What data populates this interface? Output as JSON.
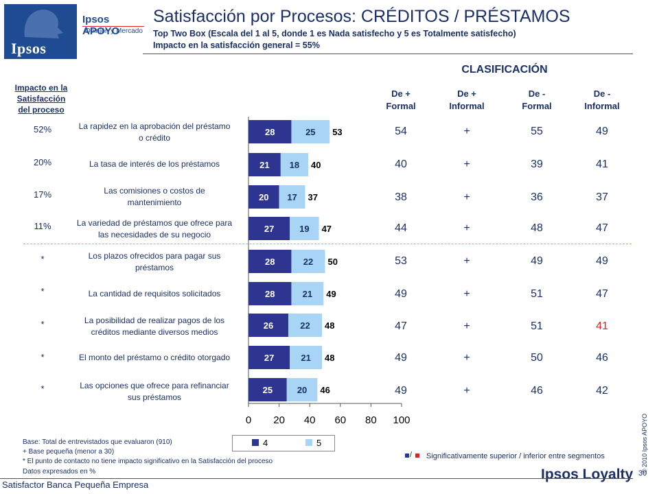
{
  "logo": {
    "brand": "Ipsos APOYO",
    "tagline": "Opinión y Mercado",
    "word": "Ipsos"
  },
  "header": {
    "title": "Satisfacción por Procesos: CRÉDITOS / PRÉSTAMOS",
    "subtitle": "Top Two Box (Escala del 1 al 5, donde 1 es Nada satisfecho y 5 es Totalmente satisfecho)",
    "impact_general": "Impacto en la satisfacción general = 55%"
  },
  "impact_header": [
    "Impacto en la",
    "Satisfacción",
    "del proceso"
  ],
  "classification": {
    "title": "CLASIFICACIÓN",
    "columns": [
      [
        "De +",
        "Formal"
      ],
      [
        "De +",
        "Informal"
      ],
      [
        "De -",
        "Formal"
      ],
      [
        "De  -",
        "Informal"
      ]
    ]
  },
  "rows": [
    {
      "impact": "52%",
      "label": [
        "La rapidez en la aprobación del préstamo",
        "o crédito"
      ],
      "class": [
        "54",
        "+",
        "55",
        "49"
      ],
      "red": [
        false,
        false,
        false,
        false
      ]
    },
    {
      "impact": "20%",
      "label": [
        "La tasa de interés de los préstamos"
      ],
      "class": [
        "40",
        "+",
        "39",
        "41"
      ],
      "red": [
        false,
        false,
        false,
        false
      ]
    },
    {
      "impact": "17%",
      "label": [
        "Las comisiones o costos de",
        "mantenimiento"
      ],
      "class": [
        "38",
        "+",
        "36",
        "37"
      ],
      "red": [
        false,
        false,
        false,
        false
      ]
    },
    {
      "impact": "11%",
      "label": [
        "La variedad de préstamos que ofrece para",
        "las necesidades de su negocio"
      ],
      "class": [
        "44",
        "+",
        "48",
        "47"
      ],
      "red": [
        false,
        false,
        false,
        false
      ]
    },
    {
      "impact": "*",
      "label": [
        "Los plazos ofrecidos para pagar sus",
        "préstamos"
      ],
      "class": [
        "53",
        "+",
        "49",
        "49"
      ],
      "red": [
        false,
        false,
        false,
        false
      ]
    },
    {
      "impact": "*",
      "label": [
        "La cantidad de requisitos solicitados"
      ],
      "class": [
        "49",
        "+",
        "51",
        "47"
      ],
      "red": [
        false,
        false,
        false,
        false
      ]
    },
    {
      "impact": "*",
      "label": [
        "La posibilidad de realizar pagos de los",
        "créditos mediante diversos medios"
      ],
      "class": [
        "47",
        "+",
        "51",
        "41"
      ],
      "red": [
        false,
        false,
        false,
        true
      ]
    },
    {
      "impact": "*",
      "label": [
        "El monto del préstamo o crédito otorgado"
      ],
      "class": [
        "49",
        "+",
        "50",
        "46"
      ],
      "red": [
        false,
        false,
        false,
        false
      ]
    },
    {
      "impact": "*",
      "label": [
        "Las opciones que ofrece para refinanciar",
        "sus préstamos"
      ],
      "class": [
        "49",
        "+",
        "46",
        "42"
      ],
      "red": [
        false,
        false,
        false,
        false
      ]
    }
  ],
  "chart_data": {
    "type": "bar",
    "orientation": "horizontal",
    "stacked": true,
    "categories": [
      "La rapidez en la aprobación del préstamo o crédito",
      "La tasa de interés de los préstamos",
      "Las comisiones o costos de mantenimiento",
      "La variedad de préstamos que ofrece para las necesidades de su negocio",
      "Los plazos ofrecidos para pagar sus préstamos",
      "La cantidad de requisitos solicitados",
      "La posibilidad de realizar pagos de los créditos mediante diversos medios",
      "El monto del préstamo o crédito otorgado",
      "Las opciones que ofrece para refinanciar sus préstamos"
    ],
    "series": [
      {
        "name": "4",
        "values": [
          28,
          21,
          20,
          27,
          28,
          28,
          26,
          27,
          25
        ],
        "color": "#2d3590"
      },
      {
        "name": "5",
        "values": [
          25,
          18,
          17,
          19,
          22,
          21,
          22,
          21,
          20
        ],
        "color": "#a8d5f5"
      }
    ],
    "totals": [
      53,
      40,
      37,
      47,
      50,
      49,
      48,
      48,
      46
    ],
    "xlim": [
      0,
      100
    ],
    "xticks": [
      0,
      20,
      40,
      60,
      80,
      100
    ],
    "legend": "bottom"
  },
  "notes": [
    "Base: Total de entrevistados que evaluaron (910)",
    "+ Base pequeña (menor a 30)",
    "* El punto de contacto no tiene impacto significativo en la Satisfacción del proceso",
    "Datos expresados en %"
  ],
  "significance_note": "Significativamente superior / inferior entre segmentos",
  "significance_colors": {
    "superior": "#1f3ba0",
    "inferior": "#e21e26"
  },
  "copyright": "© 2010 Ipsos APOYO",
  "footer": "Satisfactor Banca Pequeña Empresa",
  "brand_footer": "Ipsos Loyalty",
  "page_number": "30"
}
